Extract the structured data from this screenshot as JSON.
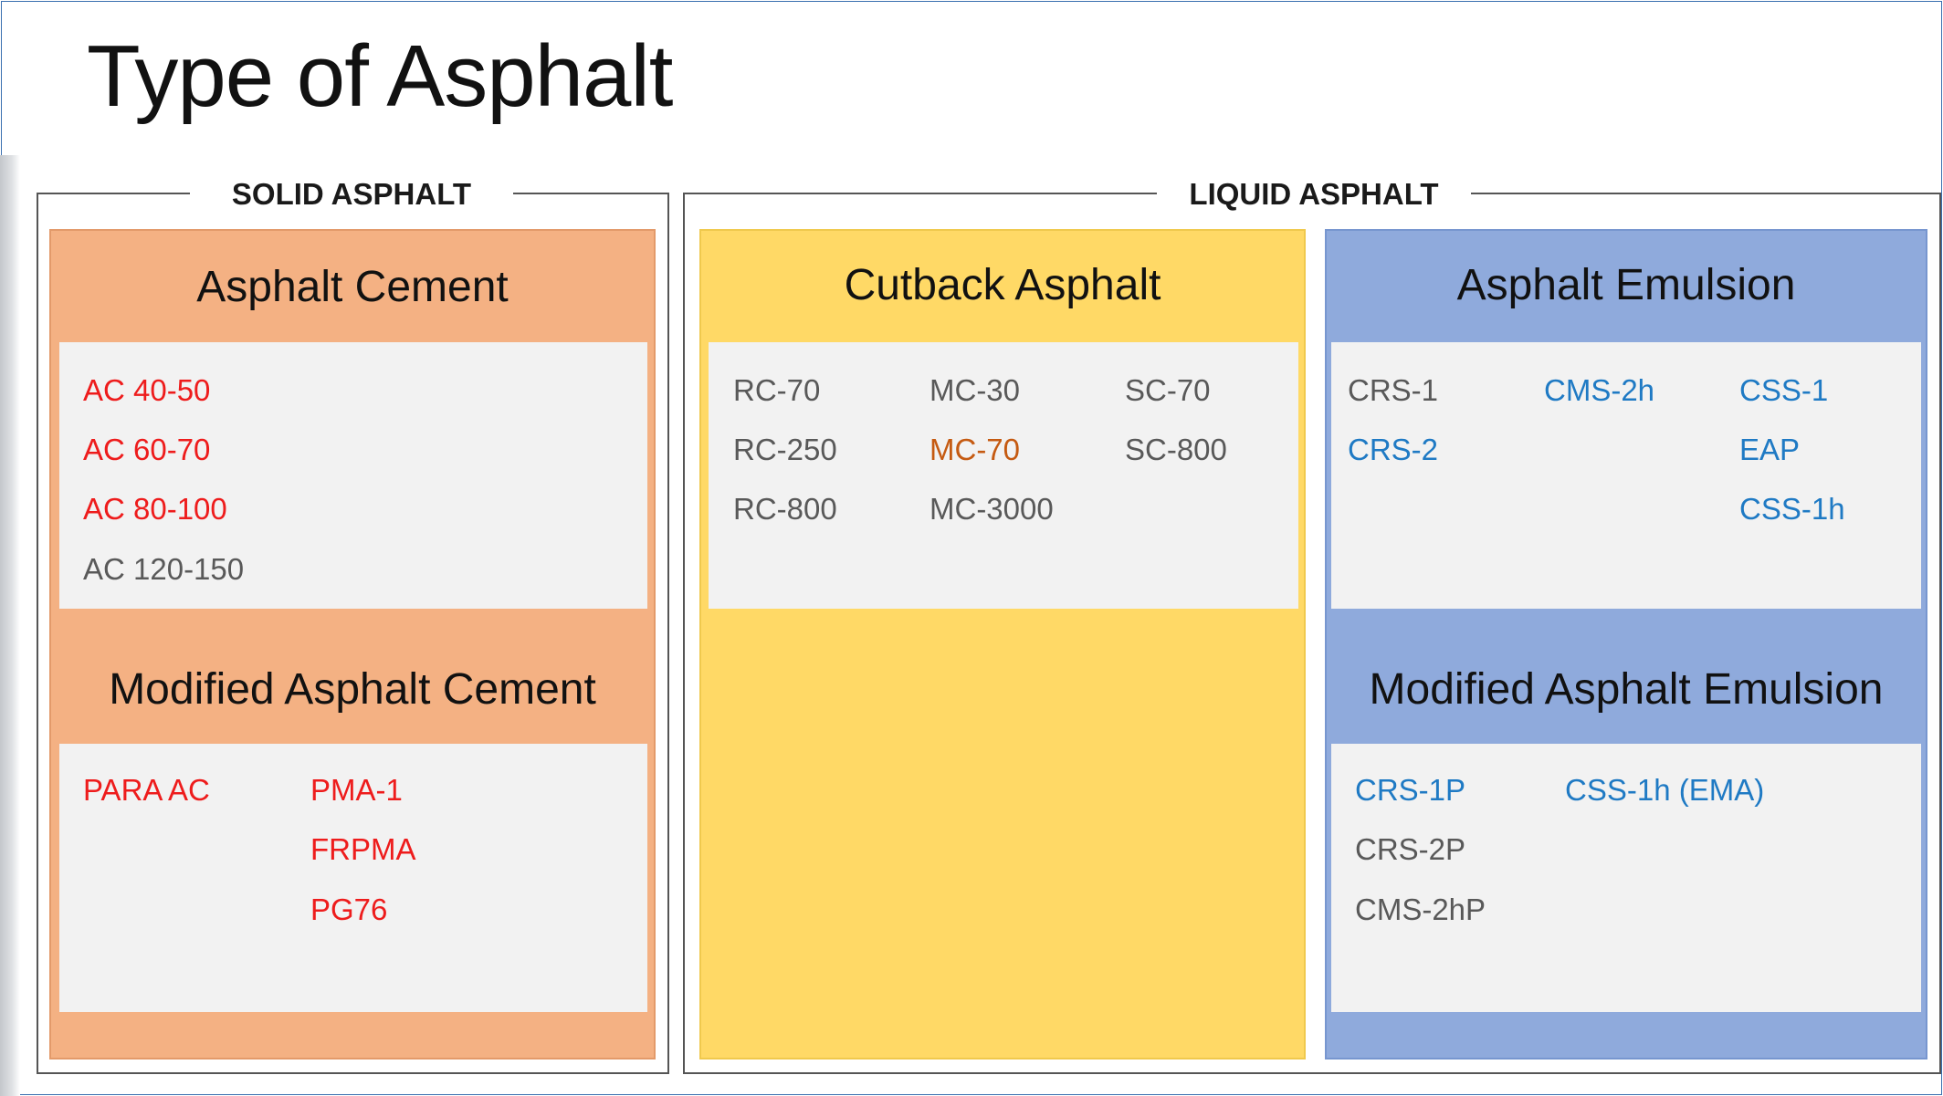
{
  "title": "Type of Asphalt",
  "groups": {
    "solid": "SOLID ASPHALT",
    "liquid": "LIQUID ASPHALT"
  },
  "categories": {
    "asphalt_cement": {
      "title": "Asphalt Cement",
      "color": "#f4b183",
      "items": [
        "AC 40-50",
        "AC 60-70",
        "AC 80-100",
        "AC 120-150"
      ]
    },
    "modified_asphalt_cement": {
      "title": "Modified Asphalt Cement",
      "color": "#f4b183",
      "items": [
        "PARA AC",
        "PMA-1",
        "FRPMA",
        "PG76"
      ]
    },
    "cutback_asphalt": {
      "title": "Cutback Asphalt",
      "color": "#ffd966",
      "items": [
        "RC-70",
        "MC-30",
        "SC-70",
        "RC-250",
        "MC-70",
        "SC-800",
        "RC-800",
        "MC-3000"
      ]
    },
    "asphalt_emulsion": {
      "title": "Asphalt Emulsion",
      "color": "#8faadc",
      "items": [
        "CRS-1",
        "CMS-2h",
        "CSS-1",
        "CRS-2",
        "EAP",
        "CSS-1h"
      ]
    },
    "modified_asphalt_emulsion": {
      "title": "Modified Asphalt Emulsion",
      "color": "#8faadc",
      "items": [
        "CRS-1P",
        "CSS-1h (EMA)",
        "CRS-2P",
        "CMS-2hP"
      ]
    }
  },
  "colors": {
    "red": "#ee1c1c",
    "gray": "#595959",
    "orange": "#c55a11",
    "blue": "#1f7ac4"
  }
}
